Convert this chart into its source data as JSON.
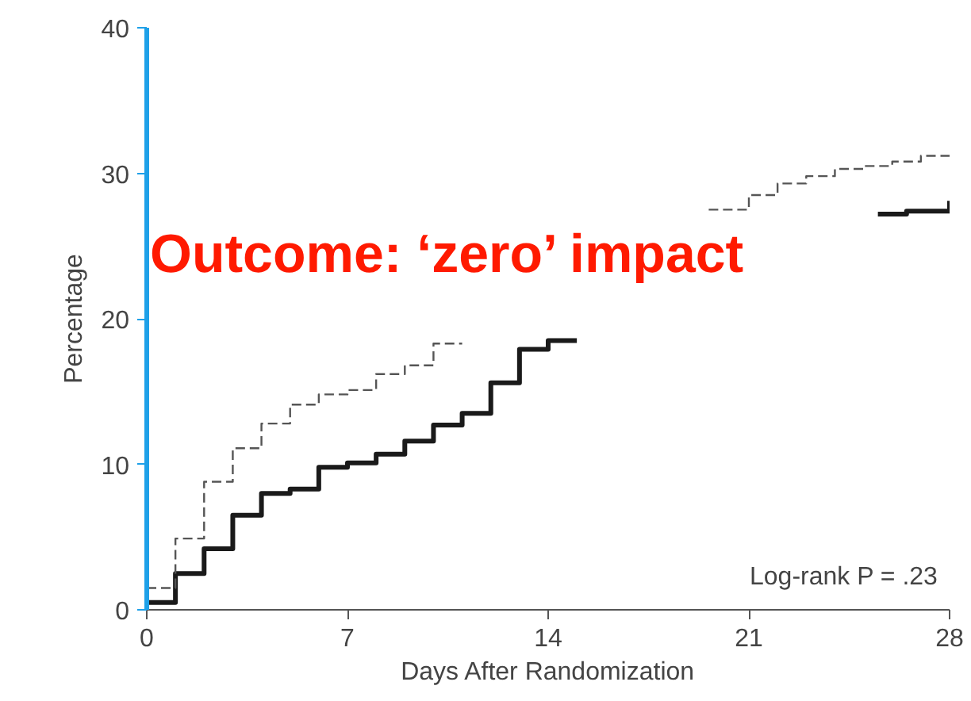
{
  "chart_data": {
    "type": "step",
    "xlabel": "Days After Randomization",
    "ylabel": "Percentage",
    "xlim": [
      0,
      28
    ],
    "ylim": [
      0,
      40
    ],
    "xticks": [
      0,
      7,
      14,
      21,
      28
    ],
    "yticks": [
      0,
      10,
      20,
      30,
      40
    ],
    "grid": false,
    "annotations": [
      "Outcome: ‘zero’ impact",
      "Log-rank P = .23"
    ],
    "series": [
      {
        "color": "#1a1a1a",
        "line_style": "solid",
        "x": [
          0,
          1,
          2,
          3,
          4,
          5,
          6,
          7,
          8,
          9,
          10,
          11,
          12,
          13,
          14,
          15,
          15.5,
          25.5,
          26.5,
          28
        ],
        "values": [
          0.5,
          2.5,
          4.2,
          6.5,
          8.0,
          8.3,
          9.8,
          10.1,
          10.7,
          11.6,
          12.7,
          13.5,
          15.6,
          17.9,
          18.5,
          18.5,
          null,
          27.2,
          27.4,
          28.1
        ]
      },
      {
        "color": "#555555",
        "line_style": "dashed",
        "x": [
          0,
          1,
          2,
          3,
          4,
          5,
          6,
          7,
          8,
          9,
          10,
          11,
          11.5,
          19.6,
          21,
          22,
          23,
          24,
          25,
          26,
          27,
          28
        ],
        "values": [
          1.5,
          4.9,
          8.8,
          11.1,
          12.8,
          14.1,
          14.8,
          15.1,
          16.2,
          16.8,
          18.3,
          18.3,
          null,
          27.5,
          28.5,
          29.3,
          29.8,
          30.3,
          30.5,
          30.8,
          31.2,
          31.2
        ]
      }
    ]
  }
}
